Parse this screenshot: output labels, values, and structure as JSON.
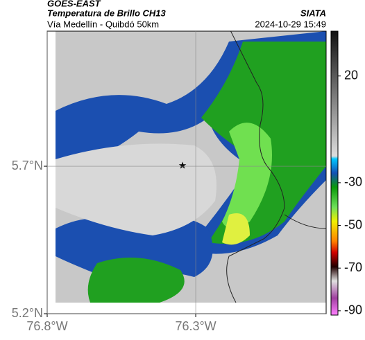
{
  "header": {
    "product": "GOES-EAST",
    "title": "Temperatura de Brillo CH13",
    "subtitle": "Vía Medellín - Quibdó 50km",
    "source": "SIATA",
    "datetime": "2024-10-29 15:49"
  },
  "map": {
    "xlim": [
      -76.8,
      -75.861
    ],
    "ylim": [
      5.2,
      6.158
    ],
    "xticks": [
      {
        "value": -76.8,
        "label": "76.8°W"
      },
      {
        "value": -76.3,
        "label": "76.3°W"
      }
    ],
    "yticks": [
      {
        "value": 5.7,
        "label": "5.7°N"
      },
      {
        "value": 5.2,
        "label": "5.2°N"
      }
    ],
    "grid": true
  },
  "colorbar": {
    "lim": [
      -92,
      41
    ],
    "ticks": [
      20,
      -30,
      -50,
      -70,
      -90
    ]
  }
}
